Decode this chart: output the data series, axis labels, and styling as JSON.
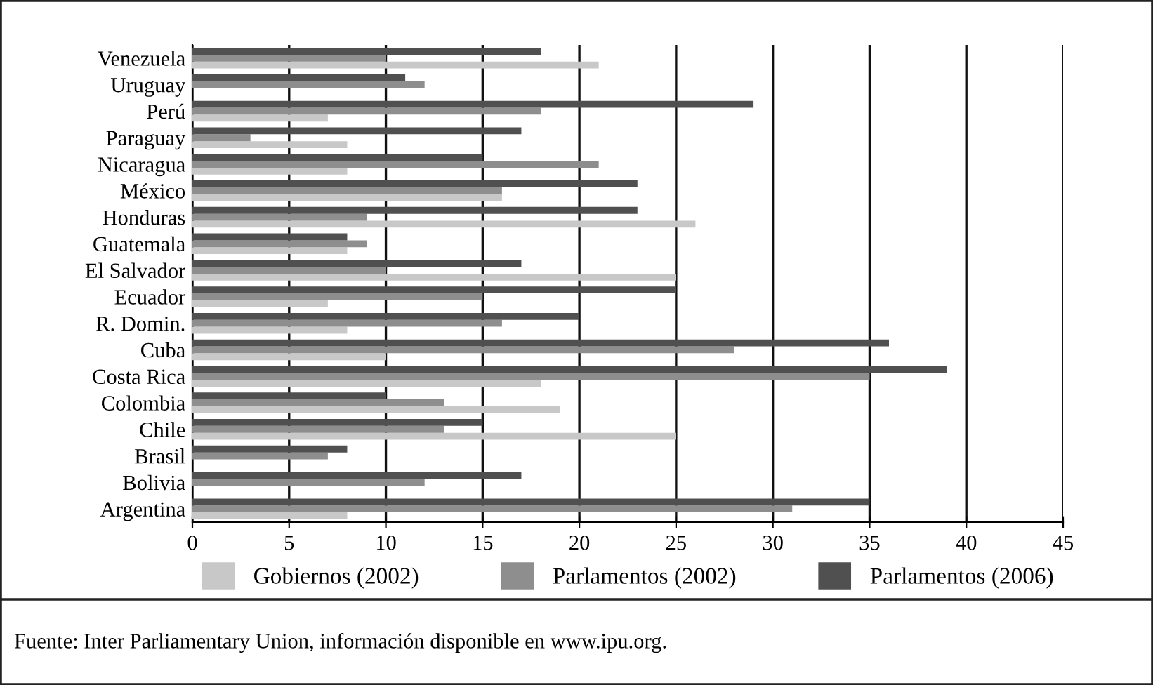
{
  "chart_data": {
    "type": "bar",
    "orientation": "horizontal",
    "categories": [
      "Venezuela",
      "Uruguay",
      "Perú",
      "Paraguay",
      "Nicaragua",
      "México",
      "Honduras",
      "Guatemala",
      "El Salvador",
      "Ecuador",
      "R. Domin.",
      "Cuba",
      "Costa Rica",
      "Colombia",
      "Chile",
      "Brasil",
      "Bolivia",
      "Argentina"
    ],
    "series": [
      {
        "name": "Gobiernos (2002)",
        "color": "#c8c8c8",
        "values": [
          21,
          null,
          7,
          8,
          8,
          16,
          26,
          8,
          25,
          7,
          8,
          10,
          18,
          19,
          25,
          null,
          null,
          8
        ]
      },
      {
        "name": "Parlamentos (2002)",
        "color": "#8e8e8e",
        "values": [
          10,
          12,
          18,
          3,
          21,
          16,
          9,
          9,
          10,
          15,
          16,
          28,
          35,
          13,
          13,
          7,
          12,
          31
        ]
      },
      {
        "name": "Parlamentos (2006)",
        "color": "#505050",
        "values": [
          18,
          11,
          29,
          17,
          15,
          23,
          23,
          8,
          17,
          25,
          20,
          36,
          39,
          10,
          15,
          8,
          17,
          35
        ]
      }
    ],
    "xlim": [
      0,
      45
    ],
    "xticks": [
      0,
      5,
      10,
      15,
      20,
      25,
      30,
      35,
      40,
      45
    ],
    "grid": "x",
    "legend": "bottom",
    "annotations": [
      "Fuente: Inter Parliamentary Union, información disponible en www.ipu.org."
    ]
  }
}
